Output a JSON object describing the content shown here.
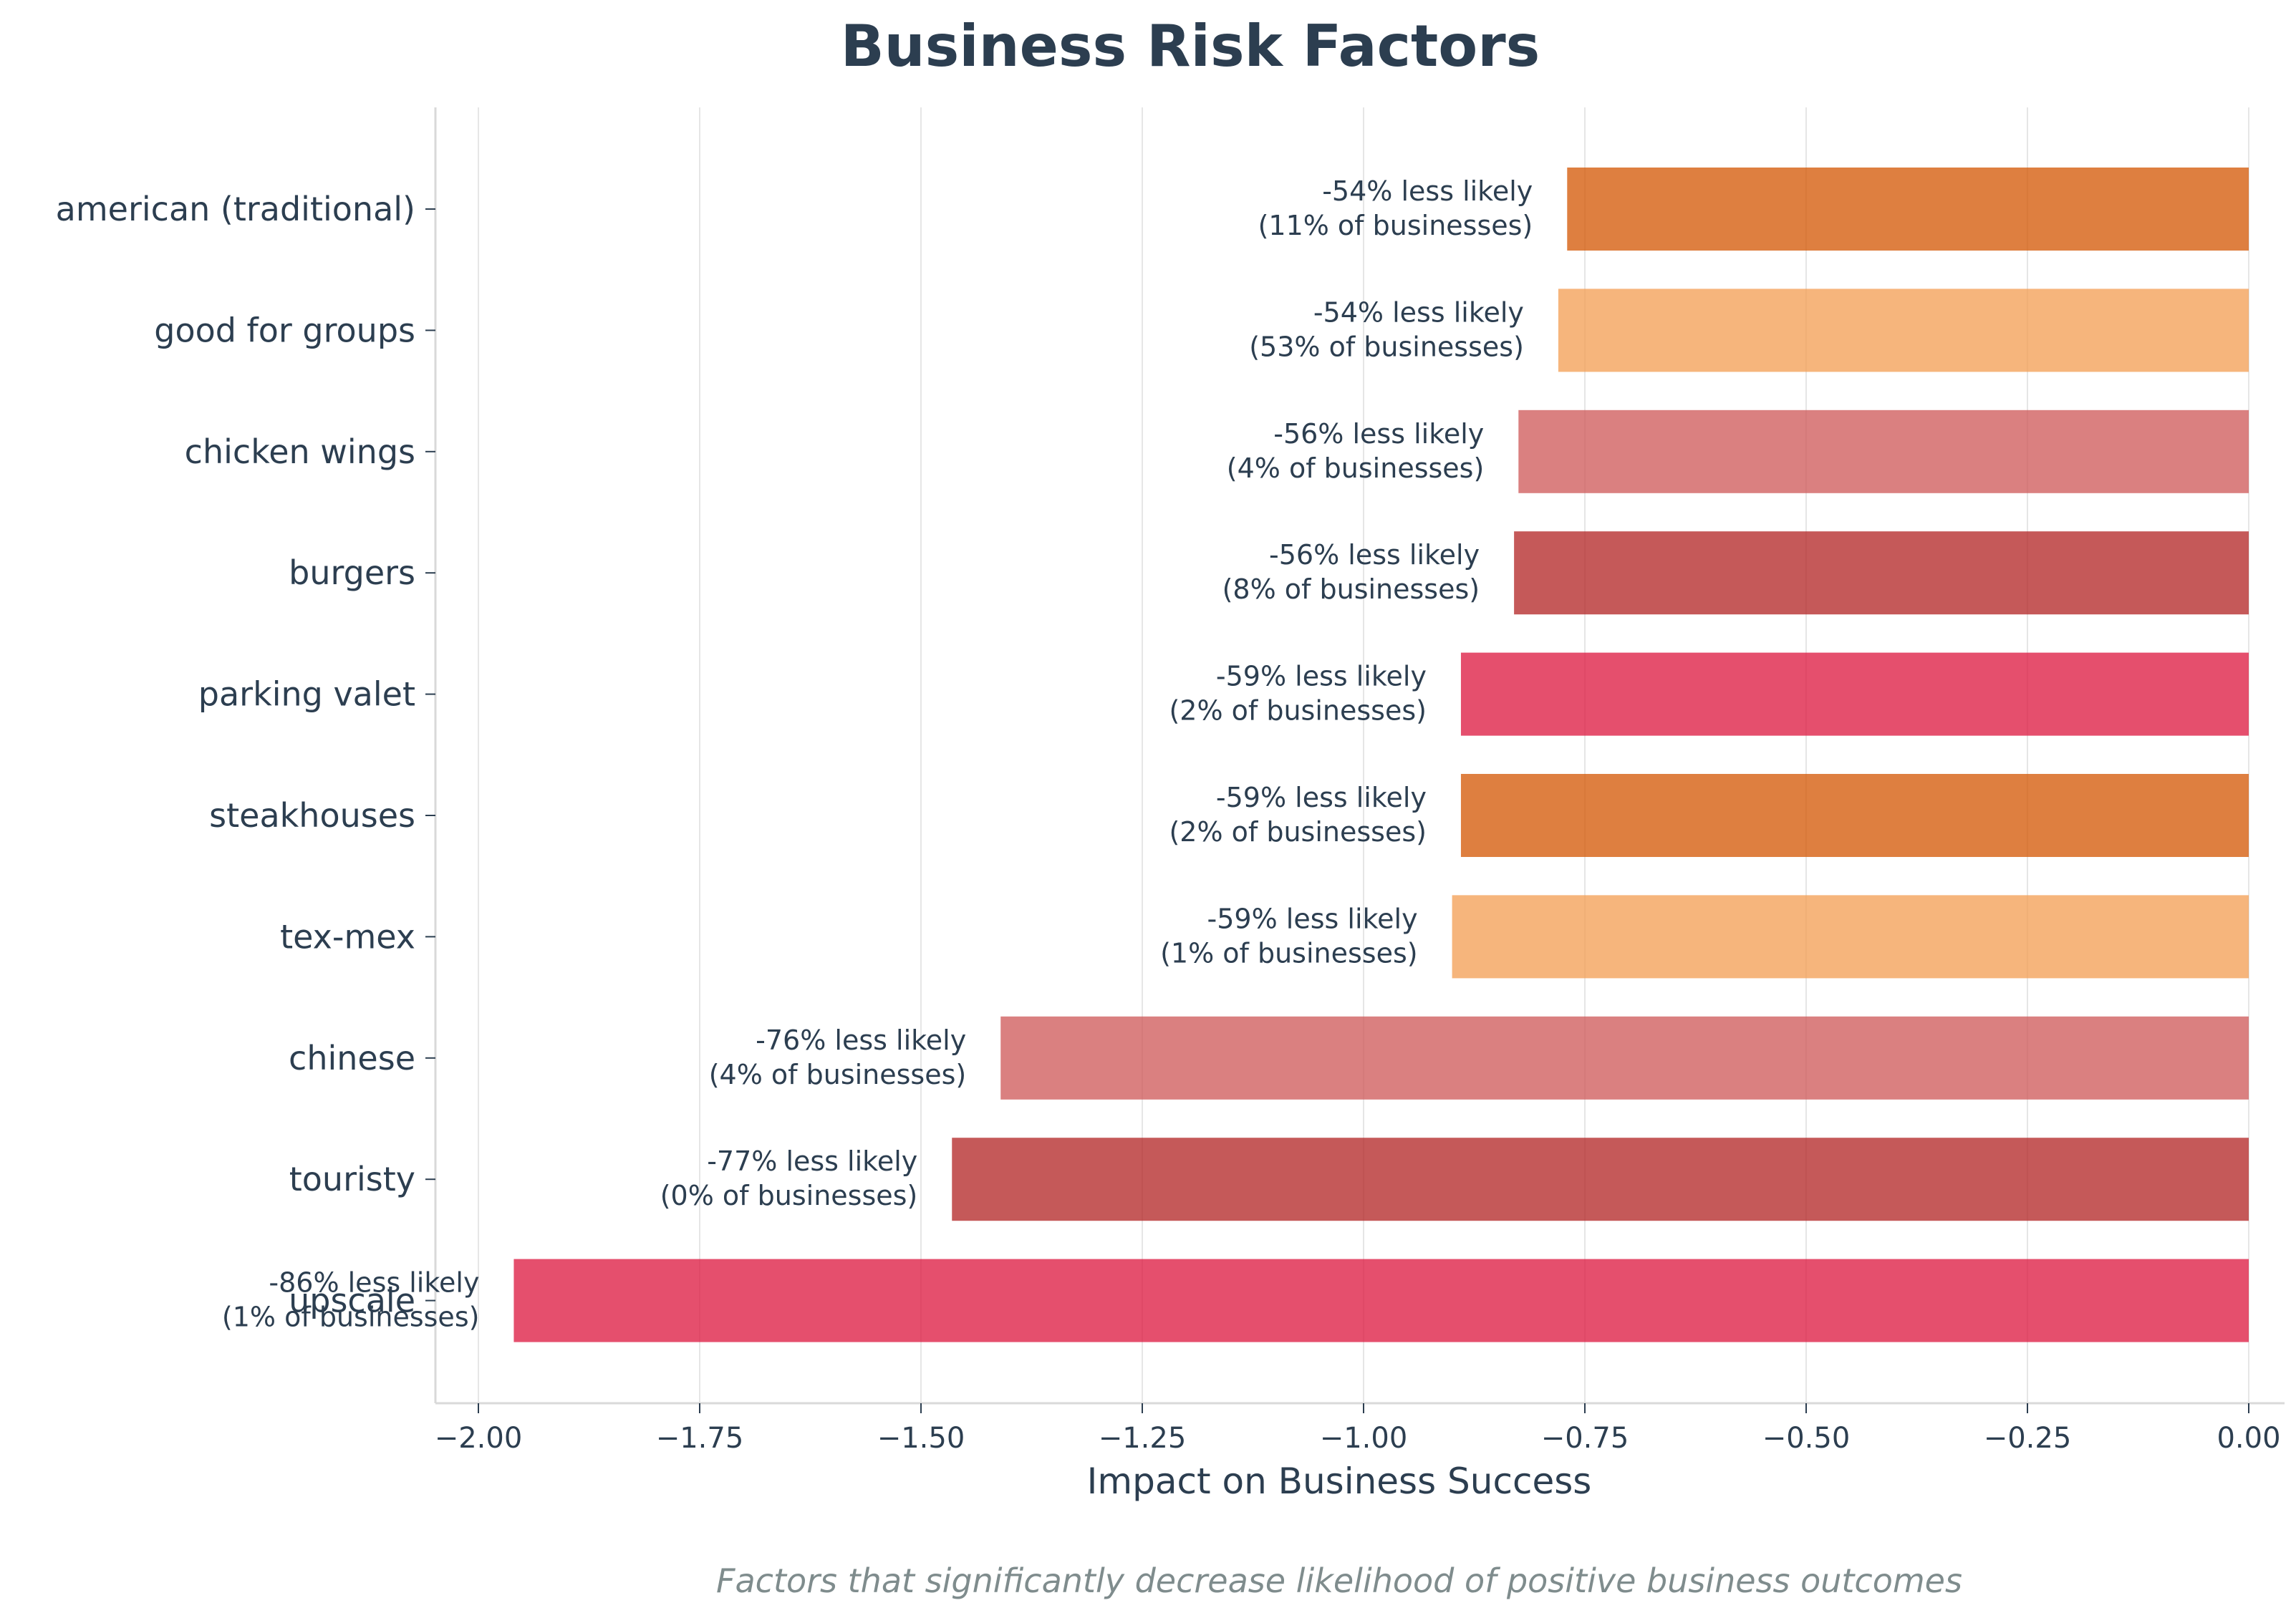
{
  "chart_data": {
    "type": "bar",
    "orientation": "horizontal",
    "title": "Business Risk Factors",
    "xlabel": "Impact on Business Success",
    "ylabel": "",
    "footnote": "Factors that significantly decrease likelihood of positive business outcomes",
    "xlim": [
      -2.06,
      0.0
    ],
    "xticks": [
      -2.0,
      -1.75,
      -1.5,
      -1.25,
      -1.0,
      -0.75,
      -0.5,
      -0.25,
      0.0
    ],
    "xtick_labels": [
      "−2.00",
      "−1.75",
      "−1.50",
      "−1.25",
      "−1.00",
      "−0.75",
      "−0.50",
      "−0.25",
      "0.00"
    ],
    "grid": "vertical",
    "legend": "none",
    "categories": [
      "american (traditional)",
      "good for groups",
      "chicken wings",
      "burgers",
      "parking valet",
      "steakhouses",
      "tex-mex",
      "chinese",
      "touristy",
      "upscale"
    ],
    "values": [
      -0.77,
      -0.78,
      -0.825,
      -0.83,
      -0.89,
      -0.89,
      -0.9,
      -1.41,
      -1.465,
      -1.96
    ],
    "colors": [
      "#d35400",
      "#f39c50",
      "#cd5555",
      "#b22222",
      "#dc143c",
      "#d35400",
      "#f39c50",
      "#cd5555",
      "#b22222",
      "#dc143c"
    ],
    "bar_opacity": 0.75,
    "annotations": [
      [
        "-54% less likely",
        "(11% of businesses)"
      ],
      [
        "-54% less likely",
        "(53% of businesses)"
      ],
      [
        "-56% less likely",
        "(4% of businesses)"
      ],
      [
        "-56% less likely",
        "(8% of businesses)"
      ],
      [
        "-59% less likely",
        "(2% of businesses)"
      ],
      [
        "-59% less likely",
        "(2% of businesses)"
      ],
      [
        "-59% less likely",
        "(1% of businesses)"
      ],
      [
        "-76% less likely",
        "(4% of businesses)"
      ],
      [
        "-77% less likely",
        "(0% of businesses)"
      ],
      [
        "-86% less likely",
        "(1% of businesses)"
      ]
    ]
  }
}
